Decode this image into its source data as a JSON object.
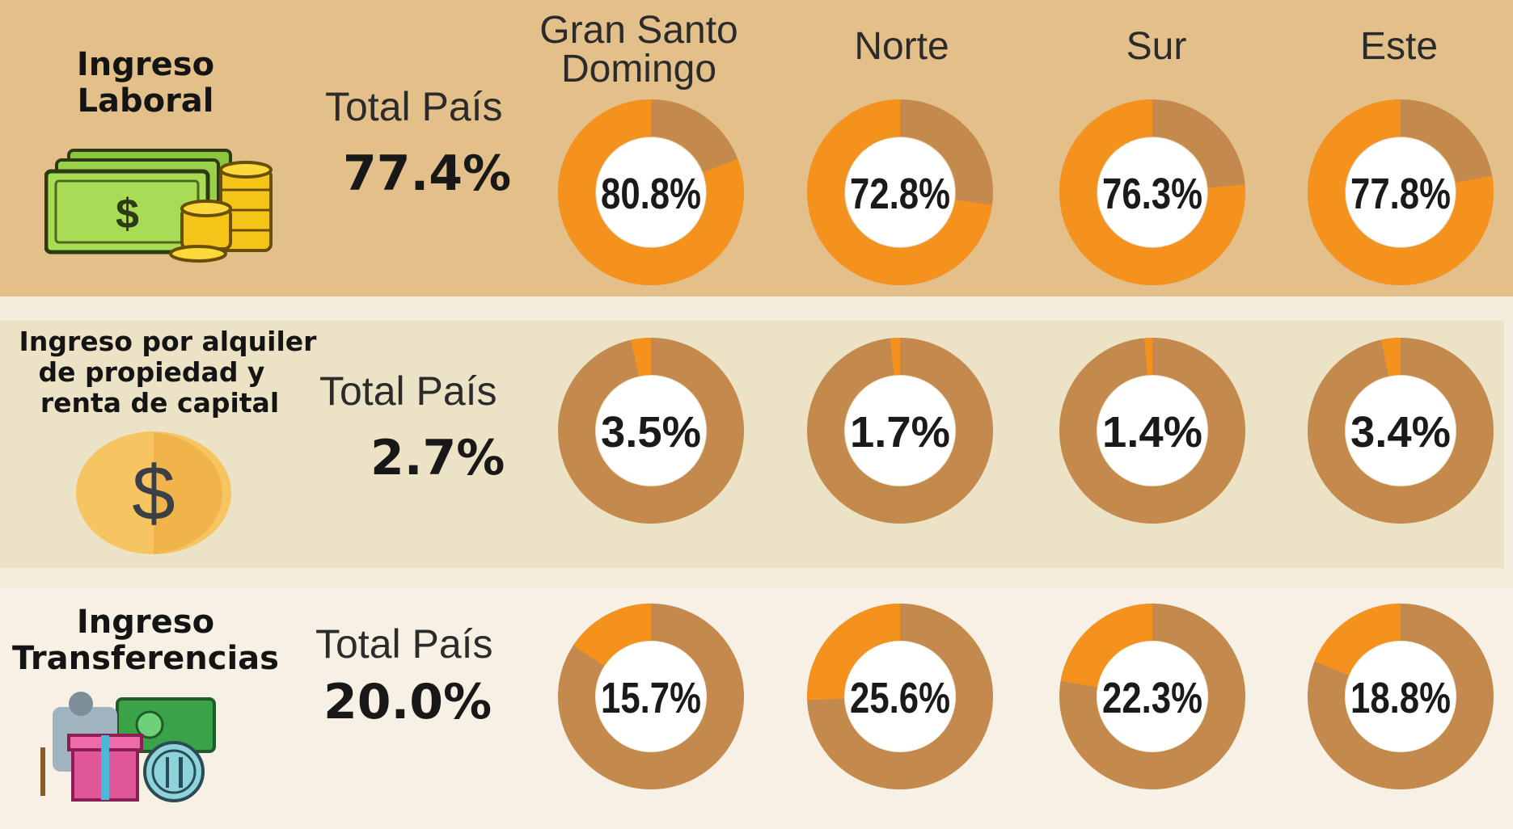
{
  "colors": {
    "accent": "#f5921e",
    "remainder": "#c4894c",
    "band_labor": "#e3c08a",
    "band_rent": "#ece2c6",
    "band_transfer": "#f6f1e4"
  },
  "icons": [
    "money-bills-coins-icon",
    "dollar-coin-icon",
    "gift-cash-food-icon"
  ],
  "region_headers": [
    {
      "line1": "Gran Santo",
      "line2": "Domingo"
    },
    {
      "line1": "Norte",
      "line2": ""
    },
    {
      "line1": "Sur",
      "line2": ""
    },
    {
      "line1": "Este",
      "line2": ""
    }
  ],
  "chart_data": {
    "type": "donut",
    "categories": [
      "Gran Santo Domingo",
      "Norte",
      "Sur",
      "Este"
    ],
    "series": [
      {
        "name": "Ingreso Laboral",
        "total_label": "Total País",
        "total": 77.4,
        "total_text": "77.4%",
        "values": [
          80.8,
          72.8,
          76.3,
          77.8
        ],
        "labels": [
          "80.8%",
          "72.8%",
          "76.3%",
          "77.8%"
        ]
      },
      {
        "name": "Ingreso por alquiler de propiedad y renta de capital",
        "total_label": "Total País",
        "total": 2.7,
        "total_text": "2.7%",
        "values": [
          3.5,
          1.7,
          1.4,
          3.4
        ],
        "labels": [
          "3.5%",
          "1.7%",
          "1.4%",
          "3.4%"
        ]
      },
      {
        "name": "Ingreso Transferencias",
        "total_label": "Total País",
        "total": 20.0,
        "total_text": "20.0%",
        "values": [
          15.7,
          25.6,
          22.3,
          18.8
        ],
        "labels": [
          "15.7%",
          "25.6%",
          "22.3%",
          "18.8%"
        ]
      }
    ]
  },
  "rows": [
    {
      "title_lines": [
        "Ingreso",
        "Laboral"
      ]
    },
    {
      "title_lines": [
        "Ingreso por alquiler",
        "de propiedad y",
        "renta de capital"
      ]
    },
    {
      "title_lines": [
        "Ingreso",
        "Transferencias"
      ]
    }
  ]
}
